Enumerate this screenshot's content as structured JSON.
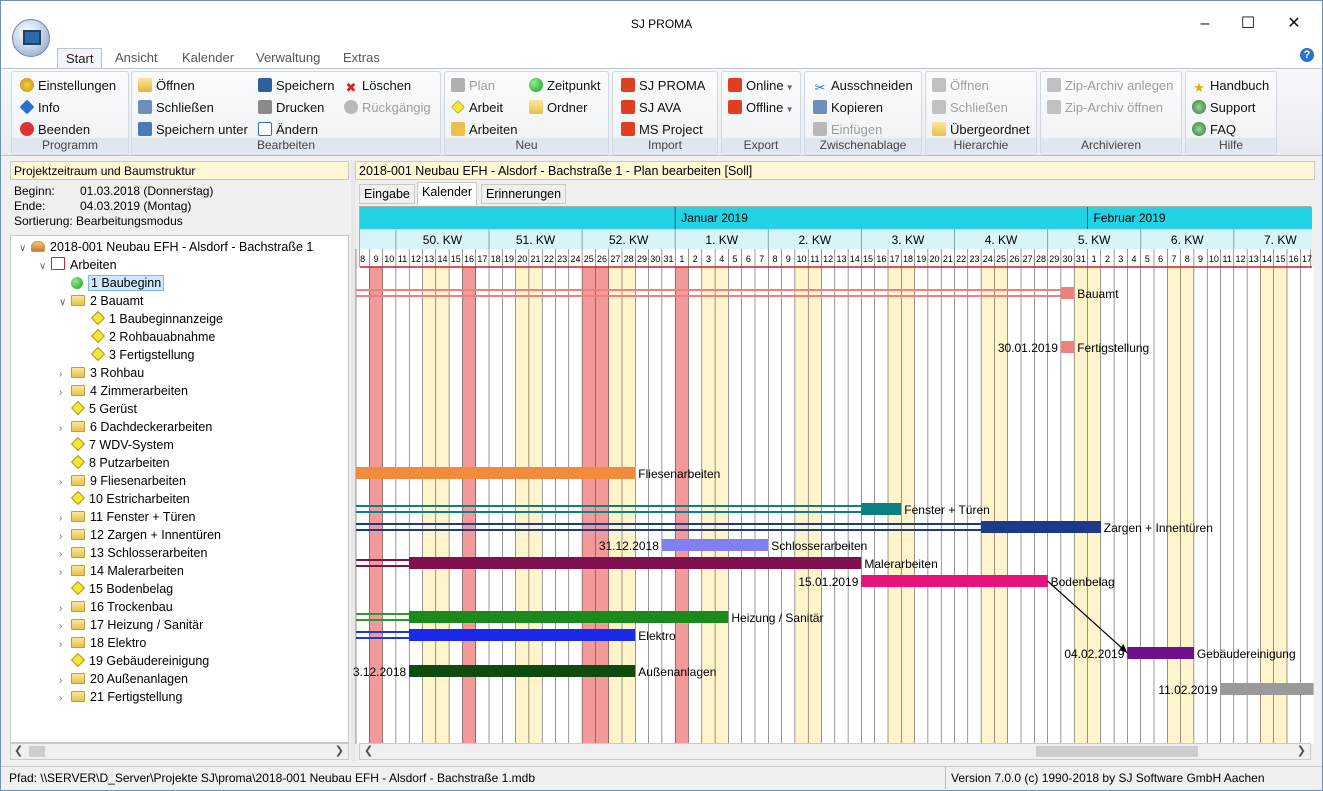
{
  "window": {
    "title": "SJ PROMA"
  },
  "ribbon_tabs": [
    "Start",
    "Ansicht",
    "Kalender",
    "Verwaltung",
    "Extras"
  ],
  "ribbon": {
    "programm": {
      "label": "Programm",
      "einstellungen": "Einstellungen",
      "info": "Info",
      "beenden": "Beenden"
    },
    "bearbeiten": {
      "label": "Bearbeiten",
      "oeffnen": "Öffnen",
      "schliessen": "Schließen",
      "speichern_unter": "Speichern unter",
      "speichern": "Speichern",
      "drucken": "Drucken",
      "aendern": "Ändern",
      "loeschen": "Löschen",
      "rueckgaengig": "Rückgängig"
    },
    "neu": {
      "label": "Neu",
      "plan": "Plan",
      "arbeit": "Arbeit",
      "arbeiten": "Arbeiten",
      "zeitpunkt": "Zeitpunkt",
      "ordner": "Ordner"
    },
    "import": {
      "label": "Import",
      "sj_proma": "SJ PROMA",
      "sj_ava": "SJ AVA",
      "ms_project": "MS Project"
    },
    "export": {
      "label": "Export",
      "online": "Online",
      "offline": "Offline"
    },
    "zwischenablage": {
      "label": "Zwischenablage",
      "ausschneiden": "Ausschneiden",
      "kopieren": "Kopieren",
      "einfuegen": "Einfügen"
    },
    "hierarchie": {
      "label": "Hierarchie",
      "oeffnen": "Öffnen",
      "schliessen": "Schließen",
      "uebergeordnet": "Übergeordnet"
    },
    "archivieren": {
      "label": "Archivieren",
      "zip_anlegen": "Zip-Archiv anlegen",
      "zip_oeffnen": "Zip-Archiv öffnen"
    },
    "hilfe": {
      "label": "Hilfe",
      "handbuch": "Handbuch",
      "support": "Support",
      "faq": "FAQ"
    }
  },
  "left_panel": {
    "header": "Projektzeitraum und Baumstruktur",
    "beginn_label": "Beginn:",
    "beginn_value": "01.03.2018 (Donnerstag)",
    "ende_label": "Ende:",
    "ende_value": "04.03.2019 (Montag)",
    "sortierung": "Sortierung: Bearbeitungsmodus"
  },
  "tree": [
    {
      "label": "2018-001 Neubau EFH - Alsdorf - Bachstraße 1",
      "level": 0,
      "icon": "project-icon",
      "arrow": "v"
    },
    {
      "label": "Arbeiten",
      "level": 1,
      "icon": "works-icon",
      "arrow": "v"
    },
    {
      "label": "1 Baubeginn",
      "level": 2,
      "icon": "milestone-green-icon",
      "arrow": "",
      "selected": true
    },
    {
      "label": "2 Bauamt",
      "level": 2,
      "icon": "folder-icon",
      "arrow": "v"
    },
    {
      "label": "1 Baubeginnanzeige",
      "level": 3,
      "icon": "diamond-icon",
      "arrow": ""
    },
    {
      "label": "2 Rohbauabnahme",
      "level": 3,
      "icon": "diamond-icon",
      "arrow": ""
    },
    {
      "label": "3 Fertigstellung",
      "level": 3,
      "icon": "diamond-icon",
      "arrow": ""
    },
    {
      "label": "3 Rohbau",
      "level": 2,
      "icon": "folder-icon",
      "arrow": ">"
    },
    {
      "label": "4 Zimmerarbeiten",
      "level": 2,
      "icon": "folder-icon",
      "arrow": ">"
    },
    {
      "label": "5 Gerüst",
      "level": 2,
      "icon": "diamond-icon",
      "arrow": ""
    },
    {
      "label": "6 Dachdeckerarbeiten",
      "level": 2,
      "icon": "folder-icon",
      "arrow": ">"
    },
    {
      "label": "7 WDV-System",
      "level": 2,
      "icon": "diamond-icon",
      "arrow": ""
    },
    {
      "label": "8 Putzarbeiten",
      "level": 2,
      "icon": "diamond-icon",
      "arrow": ""
    },
    {
      "label": "9 Fliesenarbeiten",
      "level": 2,
      "icon": "folder-icon",
      "arrow": ">"
    },
    {
      "label": "10 Estricharbeiten",
      "level": 2,
      "icon": "diamond-icon",
      "arrow": ""
    },
    {
      "label": "11 Fenster + Türen",
      "level": 2,
      "icon": "folder-icon",
      "arrow": ">"
    },
    {
      "label": "12 Zargen + Innentüren",
      "level": 2,
      "icon": "folder-icon",
      "arrow": ">"
    },
    {
      "label": "13 Schlosserarbeiten",
      "level": 2,
      "icon": "folder-icon",
      "arrow": ">"
    },
    {
      "label": "14 Malerarbeiten",
      "level": 2,
      "icon": "folder-icon",
      "arrow": ">"
    },
    {
      "label": "15 Bodenbelag",
      "level": 2,
      "icon": "diamond-icon",
      "arrow": ""
    },
    {
      "label": "16 Trockenbau",
      "level": 2,
      "icon": "folder-icon",
      "arrow": ">"
    },
    {
      "label": "17 Heizung / Sanitär",
      "level": 2,
      "icon": "folder-icon",
      "arrow": ">"
    },
    {
      "label": "18 Elektro",
      "level": 2,
      "icon": "folder-icon",
      "arrow": ">"
    },
    {
      "label": "19 Gebäudereinigung",
      "level": 2,
      "icon": "diamond-icon",
      "arrow": ""
    },
    {
      "label": "20 Außenanlagen",
      "level": 2,
      "icon": "folder-icon",
      "arrow": ">"
    },
    {
      "label": "21 Fertigstellung",
      "level": 2,
      "icon": "folder-icon",
      "arrow": ">"
    }
  ],
  "right_panel": {
    "header": "2018-001 Neubau EFH - Alsdorf - Bachstraße 1 - Plan bearbeiten [Soll]"
  },
  "subtabs": [
    "Eingabe",
    "Kalender",
    "Erinnerungen"
  ],
  "gantt": {
    "months": [
      {
        "label": "Januar 2019",
        "start_index": 24
      },
      {
        "label": "Februar 2019",
        "start_index": 55
      }
    ],
    "weeks": [
      {
        "label": "50. KW",
        "start_index": 3
      },
      {
        "label": "51. KW",
        "start_index": 10
      },
      {
        "label": "52. KW",
        "start_index": 17
      },
      {
        "label": "1. KW",
        "start_index": 24
      },
      {
        "label": "2. KW",
        "start_index": 31
      },
      {
        "label": "3. KW",
        "start_index": 38
      },
      {
        "label": "4. KW",
        "start_index": 45
      },
      {
        "label": "5. KW",
        "start_index": 52
      },
      {
        "label": "6. KW",
        "start_index": 59
      },
      {
        "label": "7. KW",
        "start_index": 66
      }
    ],
    "days": [
      "8",
      "9",
      "10",
      "11",
      "12",
      "13",
      "14",
      "15",
      "16",
      "17",
      "18",
      "19",
      "20",
      "21",
      "22",
      "23",
      "24",
      "25",
      "26",
      "27",
      "28",
      "29",
      "30",
      "31",
      "1",
      "2",
      "3",
      "4",
      "5",
      "6",
      "7",
      "8",
      "9",
      "10",
      "11",
      "12",
      "13",
      "14",
      "15",
      "16",
      "17",
      "18",
      "19",
      "20",
      "21",
      "22",
      "23",
      "24",
      "25",
      "26",
      "27",
      "28",
      "29",
      "30",
      "31",
      "1",
      "2",
      "3",
      "4",
      "5",
      "6",
      "7",
      "8",
      "9",
      "10",
      "11",
      "12",
      "13",
      "14",
      "15",
      "16",
      "17"
    ],
    "holidays": [
      1,
      8,
      17,
      18,
      24
    ],
    "weekends": [
      5,
      6,
      12,
      13,
      19,
      20,
      26,
      27,
      33,
      34,
      40,
      41,
      47,
      48,
      54,
      55,
      61,
      62,
      68,
      69
    ],
    "bars": [
      {
        "row": 1,
        "start": 0,
        "end": 53,
        "color": "#f08080",
        "style": "thin"
      },
      {
        "row": 1,
        "start": 53,
        "end": 54,
        "color": "#f08080",
        "label": "Bauamt"
      },
      {
        "row": 4,
        "start": 53,
        "end": 54,
        "color": "#f08080",
        "label": "Fertigstellung",
        "date": "30.01.2019"
      },
      {
        "row": 11,
        "start": 0,
        "end": 21,
        "color": "#f28c3c",
        "label": "Fliesenarbeiten"
      },
      {
        "row": 13,
        "start": 0,
        "end": 38,
        "color": "#0a8080",
        "style": "thin"
      },
      {
        "row": 13,
        "start": 38,
        "end": 41,
        "color": "#0a8080",
        "label": "Fenster + Türen"
      },
      {
        "row": 14,
        "start": 0,
        "end": 47,
        "color": "#1a3a8a",
        "style": "thin"
      },
      {
        "row": 14,
        "start": 47,
        "end": 56,
        "color": "#1a3a8a",
        "label": "Zargen + Innentüren"
      },
      {
        "row": 15,
        "start": 23,
        "end": 31,
        "color": "#8080f0",
        "label": "Schlosserarbeiten",
        "date": "31.12.2018"
      },
      {
        "row": 16,
        "start": 0,
        "end": 4,
        "color": "#801050",
        "style": "thin"
      },
      {
        "row": 16,
        "start": 4,
        "end": 38,
        "color": "#801050",
        "label": "Malerarbeiten"
      },
      {
        "row": 17,
        "start": 38,
        "end": 52,
        "color": "#e8127c",
        "label": "Bodenbelag",
        "date": "15.01.2019"
      },
      {
        "row": 19,
        "start": 0,
        "end": 4,
        "color": "#2a9a2a",
        "style": "thin"
      },
      {
        "row": 19,
        "start": 4,
        "end": 28,
        "color": "#1a8a1a",
        "label": "Heizung / Sanitär"
      },
      {
        "row": 20,
        "start": 0,
        "end": 4,
        "color": "#1a3ad8",
        "style": "thin"
      },
      {
        "row": 20,
        "start": 4,
        "end": 21,
        "color": "#1a2ae8",
        "label": "Elektro"
      },
      {
        "row": 21,
        "start": 58,
        "end": 63,
        "color": "#70108a",
        "label": "Gebäudereinigung",
        "date": "04.02.2019"
      },
      {
        "row": 22,
        "start": 4,
        "end": 21,
        "color": "#0f4a0f",
        "label": "Außenanlagen",
        "date": "3.12.2018"
      },
      {
        "row": 23,
        "start": 65,
        "end": 72,
        "color": "#9a9a9a",
        "date": "11.02.2019"
      }
    ],
    "link": {
      "from_row": 17,
      "from_index": 52,
      "to_row": 21,
      "to_index": 58
    }
  },
  "statusbar": {
    "path": "Pfad: \\\\SERVER\\D_Server\\Projekte SJ\\proma\\2018-001 Neubau EFH - Alsdorf - Bachstraße 1.mdb",
    "version": "Version 7.0.0 (c) 1990-2018 by SJ Software GmbH Aachen"
  },
  "colors": {
    "month_header": "#23d3e3",
    "week_header": "#d8f4f8",
    "holiday": "#f29a9a",
    "weekend": "#fff4cc",
    "today_line": "#d02020"
  }
}
